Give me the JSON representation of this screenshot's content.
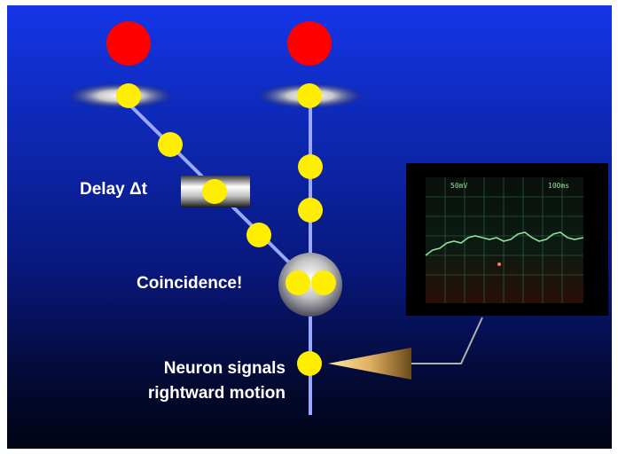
{
  "labels": {
    "delay": "Delay Δt",
    "coincidence": "Coincidence!",
    "neuron_line1": "Neuron signals",
    "neuron_line2": "rightward motion"
  },
  "oscilloscope": {
    "readout_left": "50mV",
    "readout_right": "100ms"
  },
  "colors": {
    "background_top": "#1436e8",
    "background_bottom": "#010414",
    "stimulus": "#ff0000",
    "spike": "#ffee00",
    "axon": "#9aa8ff",
    "scope_trace": "#8fe0a0"
  },
  "icons": [
    "stimulus-circle-icon",
    "receptor-disc-icon",
    "spike-dot-icon",
    "delay-block-icon",
    "coincidence-detector-icon",
    "electrode-icon",
    "oscilloscope-icon"
  ]
}
